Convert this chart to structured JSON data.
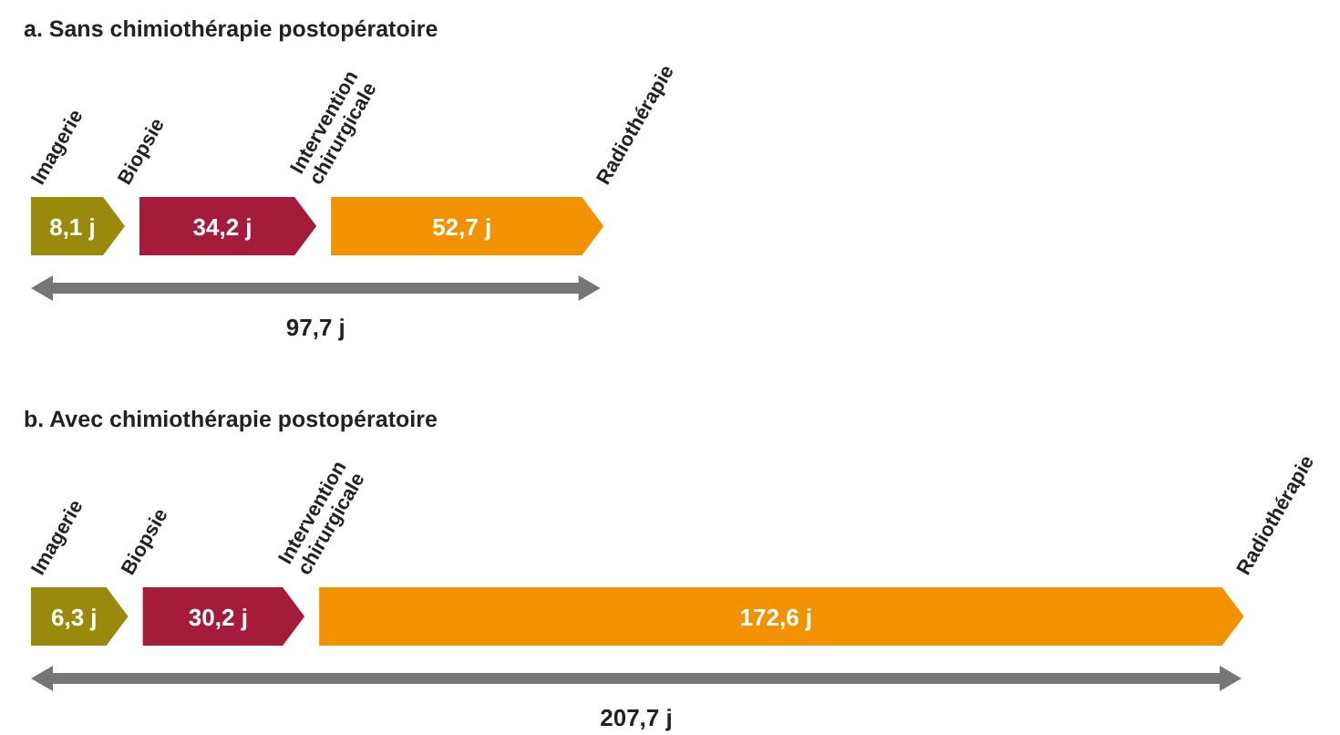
{
  "chart_data": [
    {
      "type": "other",
      "title": "a. Sans chimiothérapie postopératoire",
      "annotations": [
        "Imagerie",
        "Biopsie",
        "Intervention chirurgicale",
        "Radiothérapie"
      ],
      "values": [
        8.1,
        34.2,
        52.7
      ],
      "value_labels": [
        "8,1 j",
        "34,2 j",
        "52,7 j"
      ],
      "colors": [
        "#9a8a0b",
        "#a51c3a",
        "#f39200"
      ],
      "totals": [
        "97,7 j"
      ],
      "data_labels": true
    },
    {
      "type": "other",
      "title": "b. Avec chimiothérapie postopératoire",
      "annotations": [
        "Imagerie",
        "Biopsie",
        "Intervention chirurgicale",
        "Radiothérapie"
      ],
      "values": [
        6.3,
        30.2,
        172.6
      ],
      "value_labels": [
        "6,3 j",
        "30,2 j",
        "172,6 j"
      ],
      "colors": [
        "#9a8a0b",
        "#a51c3a",
        "#f39200"
      ],
      "totals": [
        "207,7 j"
      ],
      "data_labels": true
    }
  ]
}
